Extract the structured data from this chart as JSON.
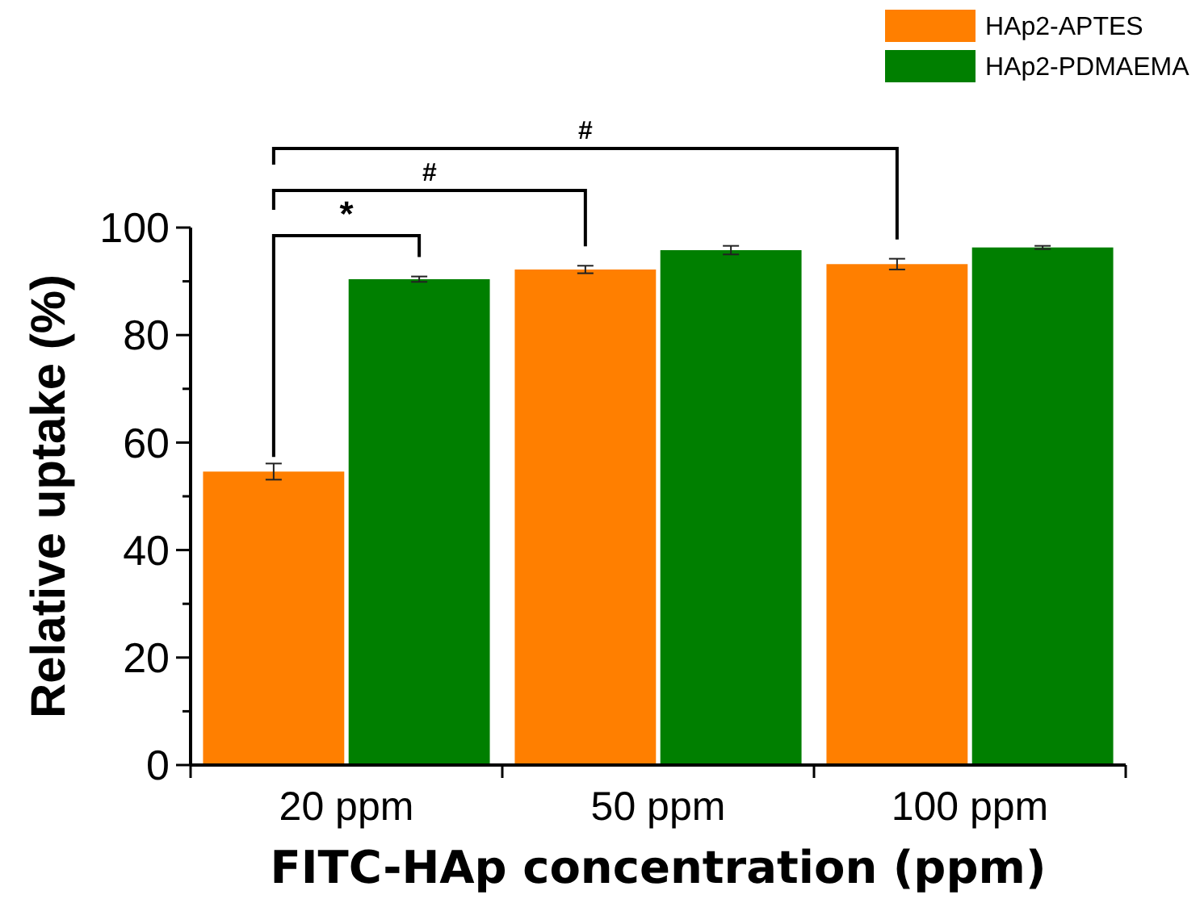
{
  "chart_data": {
    "type": "bar",
    "xlabel": "FITC-HAp concentration (ppm)",
    "ylabel": "Relative uptake (%)",
    "categories": [
      "20 ppm",
      "50 ppm",
      "100 ppm"
    ],
    "series": [
      {
        "name": "HAp2-APTES",
        "color": "#ff7f00",
        "values": [
          54.6,
          92.2,
          93.2
        ],
        "errors": [
          1.5,
          0.7,
          1.0
        ]
      },
      {
        "name": "HAp2-PDMAEMA",
        "color": "#007f00",
        "values": [
          90.4,
          95.8,
          96.3
        ],
        "errors": [
          0.5,
          0.8,
          0.3
        ]
      }
    ],
    "ylim": [
      0,
      100
    ],
    "yticks": [
      0,
      {
        "value": 10,
        "label": null
      },
      20,
      {
        "value": 30,
        "label": null
      },
      40,
      {
        "value": 50,
        "label": null
      },
      60,
      {
        "value": 70,
        "label": null
      },
      80,
      {
        "value": 90,
        "label": null
      },
      100
    ],
    "annotations": [
      "*",
      "#",
      "#"
    ],
    "legend": "top right",
    "grid": false
  }
}
